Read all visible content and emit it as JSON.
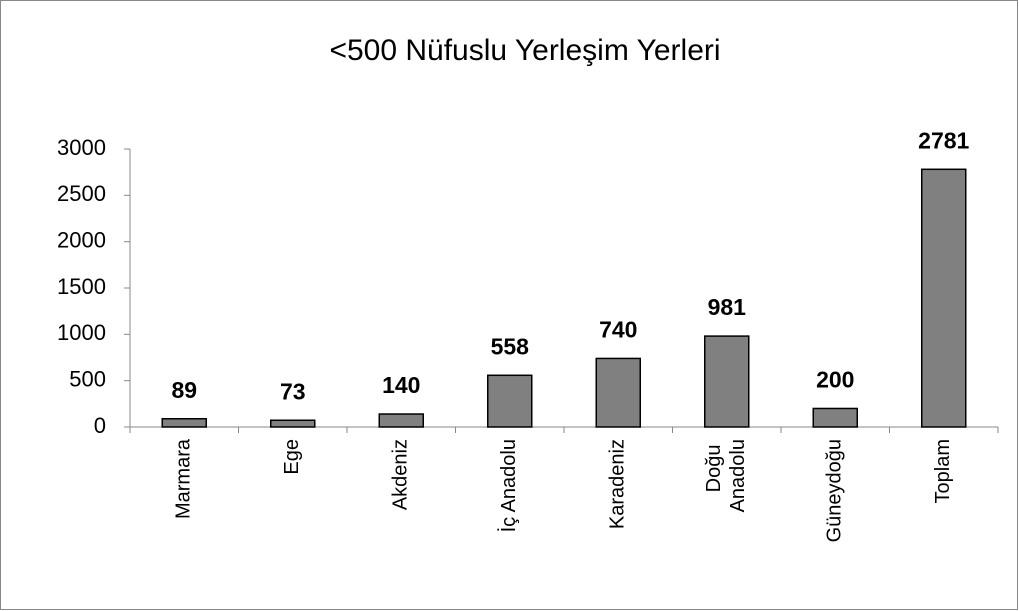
{
  "chart_data": {
    "type": "bar",
    "title": "<500 Nüfuslu Yerleşim Yerleri",
    "categories": [
      "Marmara",
      "Ege",
      "Akdeniz",
      "İç Anadolu",
      "Karadeniz",
      "Doğu Anadolu",
      "Güneydoğu",
      "Toplam"
    ],
    "values": [
      89,
      73,
      140,
      558,
      740,
      981,
      200,
      2781
    ],
    "color": "#808080",
    "ylim": [
      0,
      3000
    ],
    "yticks": [
      0,
      500,
      1000,
      1500,
      2000,
      2500,
      3000
    ],
    "grid": false
  }
}
